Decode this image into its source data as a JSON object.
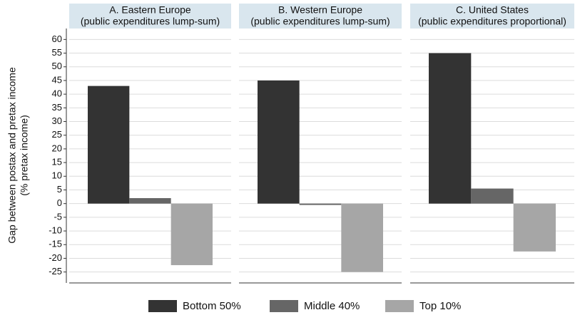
{
  "chart_data": {
    "type": "bar",
    "y_label": [
      "Gap between postax and pretax income",
      "(% pretax income)"
    ],
    "categories": [
      [
        "A. Eastern Europe",
        "(public expenditures lump-sum)"
      ],
      [
        "B. Western Europe",
        "(public expenditures lump-sum)"
      ],
      [
        "C. United States",
        "(public expenditures proportional)"
      ]
    ],
    "series": [
      {
        "name": "Bottom 50%",
        "color": "#333333",
        "values": [
          43,
          45,
          55
        ]
      },
      {
        "name": "Middle 40%",
        "color": "#666666",
        "values": [
          2,
          -0.5,
          5.5
        ]
      },
      {
        "name": "Top 10%",
        "color": "#a6a6a6",
        "values": [
          -22.5,
          -25,
          -17.5
        ]
      }
    ],
    "ylim": [
      -29,
      64
    ],
    "yticks": [
      -25,
      -20,
      -15,
      -10,
      -5,
      0,
      5,
      10,
      15,
      20,
      25,
      30,
      35,
      40,
      45,
      50,
      55,
      60
    ],
    "grid": true
  }
}
